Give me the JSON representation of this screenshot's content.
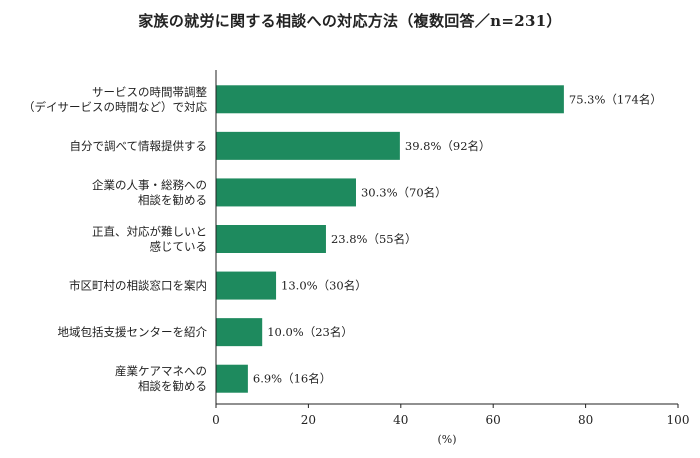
{
  "chart_data": {
    "type": "bar",
    "orientation": "horizontal",
    "title": "家族の就労に関する相談への対応方法（複数回答／n=231）",
    "categories": [
      [
        "サービスの時間帯調整",
        "（デイサービスの時間など）で対応"
      ],
      [
        "自分で調べて情報提供する"
      ],
      [
        "企業の人事・総務への",
        "相談を勧める"
      ],
      [
        "正直、対応が難しいと",
        "感じている"
      ],
      [
        "市区町村の相談窓口を案内"
      ],
      [
        "地域包括支援センターを紹介"
      ],
      [
        "産業ケアマネへの",
        "相談を勧める"
      ]
    ],
    "values": [
      75.3,
      39.8,
      30.3,
      23.8,
      13.0,
      10.0,
      6.9
    ],
    "value_labels": [
      "75.3%（174名）",
      "39.8%（92名）",
      "30.3%（70名）",
      "23.8%（55名）",
      "13.0%（30名）",
      "10.0%（23名）",
      "6.9%（16名）"
    ],
    "xlabel": "(%)",
    "xlim": [
      0,
      100
    ],
    "xticks": [
      "0",
      "20",
      "40",
      "60",
      "80",
      "100"
    ],
    "bar_color": "#1e8a5e",
    "grid": false
  }
}
